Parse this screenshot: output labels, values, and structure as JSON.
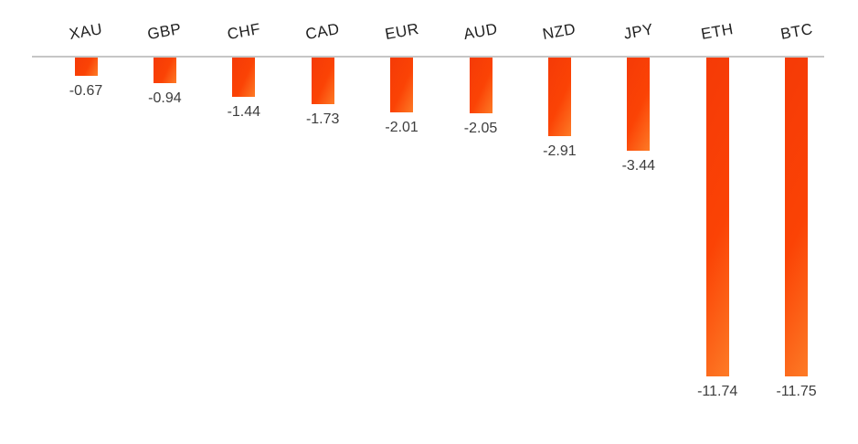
{
  "chart_data": {
    "type": "bar",
    "orientation": "vertical",
    "title": "",
    "xlabel": "",
    "ylabel": "",
    "ylim": [
      -12,
      0
    ],
    "grid": false,
    "legend": false,
    "baseline": 0,
    "categories": [
      "XAU",
      "GBP",
      "CHF",
      "CAD",
      "EUR",
      "AUD",
      "NZD",
      "JPY",
      "ETH",
      "BTC"
    ],
    "values": [
      -0.67,
      -0.94,
      -1.44,
      -1.73,
      -2.01,
      -2.05,
      -2.91,
      -3.44,
      -11.74,
      -11.75
    ],
    "value_labels": [
      "-0.67",
      "-0.94",
      "-1.44",
      "-1.73",
      "-2.01",
      "-2.05",
      "-2.91",
      "-3.44",
      "-11.74",
      "-11.75"
    ],
    "data_label_position": "outside-end",
    "colors": {
      "bar_gradient_start": "#f53a06",
      "bar_gradient_mid": "#fb4305",
      "bar_gradient_end": "#fd7b26",
      "axis_line": "#c6c6c6",
      "category_label": "#1f1f1f",
      "value_label": "#3d3d3d",
      "background": "#ffffff"
    }
  }
}
